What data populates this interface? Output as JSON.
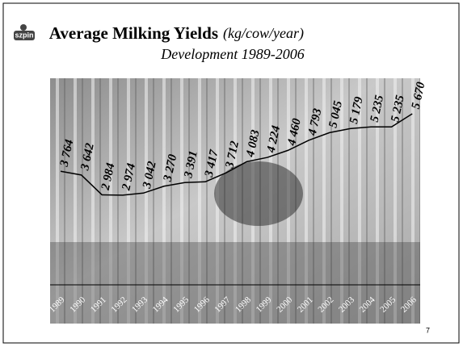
{
  "logo": "szpin",
  "page_number": "7",
  "chart_data": {
    "type": "line",
    "title": "Average Milking Yields",
    "title_unit": "(kg/cow/year)",
    "subtitle": "Development 1989-2006",
    "categories": [
      "1989",
      "1990",
      "1991",
      "1992",
      "1993",
      "1994",
      "1995",
      "1996",
      "1997",
      "1998",
      "1999",
      "2000",
      "2001",
      "2002",
      "2003",
      "2004",
      "2005",
      "2006"
    ],
    "series": [
      {
        "color": "#000000",
        "values": [
          3764,
          3642,
          2984,
          2974,
          3042,
          3270,
          3391,
          3417,
          3712,
          4083,
          4224,
          4460,
          4793,
          5045,
          5179,
          5235,
          5235,
          5670
        ],
        "value_labels": [
          "3 764",
          "3 642",
          "2 984",
          "2 974",
          "3 042",
          "3 270",
          "3 391",
          "3 417",
          "3 712",
          "4 083",
          "4 224",
          "4 460",
          "4 793",
          "5 045",
          "5 179",
          "5 235",
          "5 235",
          "5 670"
        ]
      }
    ],
    "ylim": [
      0,
      6500
    ]
  }
}
